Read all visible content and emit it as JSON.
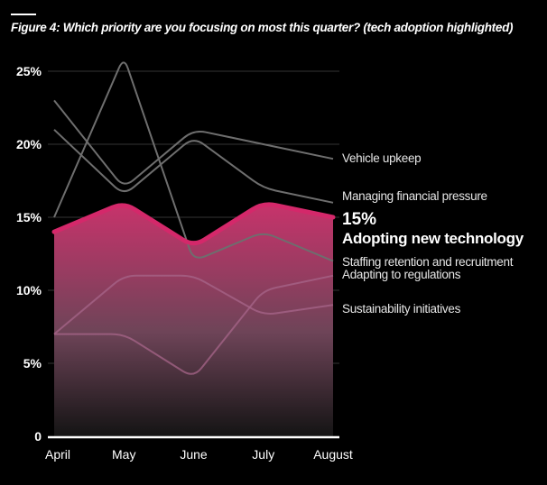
{
  "figure": {
    "title": "Figure 4: Which priority are you focusing on most this quarter? (tech adoption highlighted)"
  },
  "colors": {
    "background": "#000000",
    "highlight": "#d4286a",
    "highlight_fill_top": "#c7336b",
    "highlight_fill_bottom": "#141414",
    "muted_line": "#6e6e6e",
    "muted_line_inside": "#a7668a",
    "grid": "#333333",
    "axis": "#ffffff"
  },
  "chart_data": {
    "type": "line",
    "title": "Figure 4: Which priority are you focusing on most this quarter? (tech adoption highlighted)",
    "xlabel": "",
    "ylabel": "",
    "categories": [
      "April",
      "May",
      "June",
      "July",
      "August"
    ],
    "ylim": [
      0,
      25
    ],
    "yticks": [
      0,
      5,
      10,
      15,
      20,
      25
    ],
    "ytick_labels": [
      "0",
      "5%",
      "10%",
      "15%",
      "20%",
      "25%"
    ],
    "grid": true,
    "legend": "direct-labels-right",
    "highlight_series": "Adopting new technology",
    "highlight_value_label": "15%",
    "series": [
      {
        "name": "Vehicle upkeep",
        "values": [
          23,
          17,
          21,
          20,
          19
        ],
        "highlight": false
      },
      {
        "name": "Managing financial pressure",
        "values": [
          21,
          16.5,
          20.5,
          17,
          16
        ],
        "highlight": false
      },
      {
        "name": "Adopting new technology",
        "values": [
          14,
          16,
          13,
          16,
          15
        ],
        "highlight": true
      },
      {
        "name": "Staffing retention and recruitment",
        "values": [
          15,
          26,
          12,
          14,
          12
        ],
        "highlight": false
      },
      {
        "name": "Adapting to regulations",
        "values": [
          7,
          7,
          4,
          10,
          11
        ],
        "highlight": false
      },
      {
        "name": "Sustainability initiatives",
        "values": [
          7,
          11,
          11,
          8.3,
          9
        ],
        "highlight": false
      }
    ]
  }
}
